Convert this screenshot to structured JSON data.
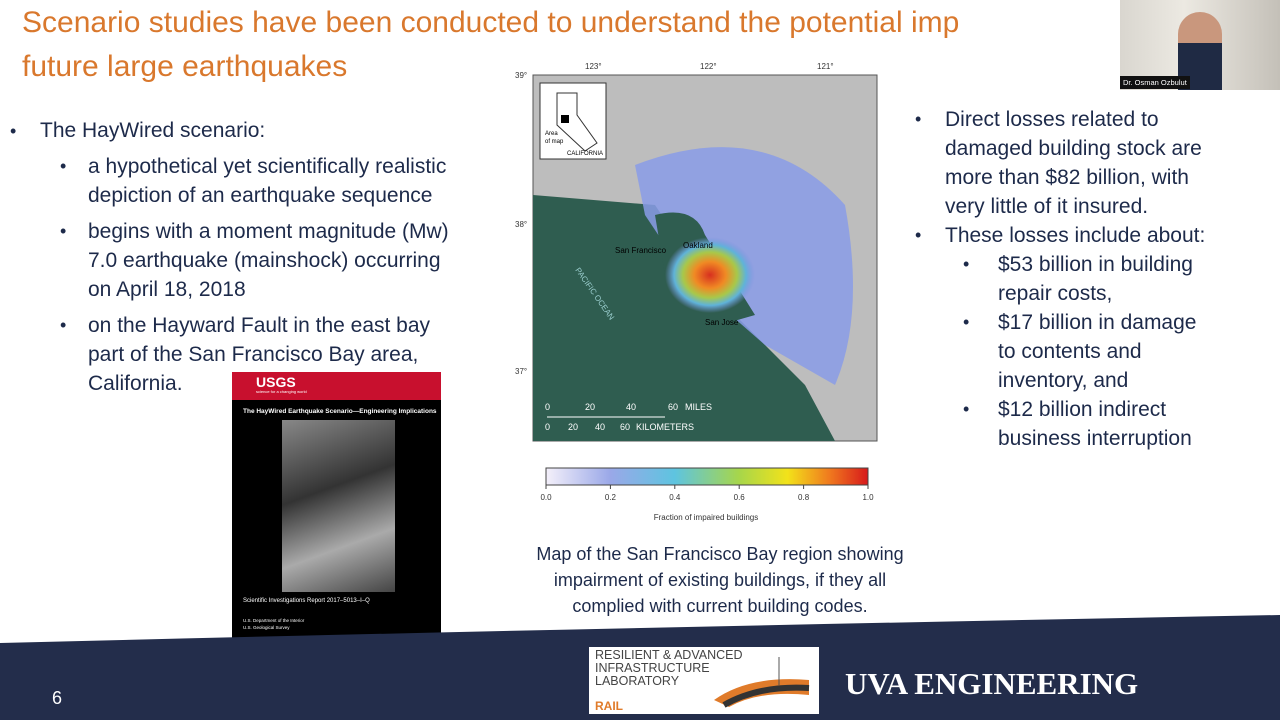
{
  "slide": {
    "title_lines": [
      "Scenario studies have been conducted to understand the potential imp",
      "future large earthquakes"
    ],
    "left": {
      "heading": "The HayWired scenario:",
      "items": [
        [
          "a hypothetical yet scientifically realistic",
          "depiction of an earthquake sequence"
        ],
        [
          "begins with a moment magnitude (Mw)",
          "7.0 earthquake (mainshock) occurring",
          "on April 18, 2018"
        ],
        [
          "on the Hayward Fault in the east bay",
          "part of the San Francisco Bay area,",
          "California."
        ]
      ]
    },
    "right": {
      "items": [
        [
          "Direct losses related to",
          "damaged building stock are",
          "more than $82 billion, with",
          "very little of it insured."
        ],
        [
          "These losses include about:"
        ]
      ],
      "subitems": [
        [
          "$53 billion in building",
          "repair costs,"
        ],
        [
          "$17 billion in damage",
          "to contents and",
          "inventory, and"
        ],
        [
          "$12 billion indirect",
          "business interruption"
        ]
      ]
    },
    "map": {
      "lon_labels": [
        "123°",
        "122°",
        "121°"
      ],
      "lat_labels": [
        "39°",
        "38°",
        "37°"
      ],
      "inset": {
        "area": [
          "Area",
          "of map"
        ],
        "state": "CALIFORNIA"
      },
      "places": {
        "sf": "San Francisco",
        "oak": "Oakland",
        "sj": "San Jose",
        "ocean": "PACIFIC OCEAN"
      },
      "scale_miles": [
        "0",
        "20",
        "40",
        "60",
        "MILES"
      ],
      "scale_km": [
        "0",
        "20",
        "40",
        "60",
        "KILOMETERS"
      ]
    },
    "colorbar": {
      "ticks": [
        "0.0",
        "0.2",
        "0.4",
        "0.6",
        "0.8",
        "1.0"
      ],
      "label": "Fraction of impaired buildings"
    },
    "caption": [
      "Map of the San Francisco Bay region showing",
      "impairment of existing buildings, if they all",
      "complied with current building codes."
    ],
    "report_cover": {
      "publisher": "USGS",
      "tagline": "science for a changing world",
      "title": "The HayWired Earthquake Scenario—Engineering Implications",
      "report": "Scientific Investigations Report 2017–5013–I–Q",
      "agency": [
        "U.S. Department of the Interior",
        "U.S. Geological Survey"
      ]
    },
    "footer": {
      "page": "6",
      "lab": [
        "RESILIENT & ADVANCED",
        "INFRASTRUCTURE",
        "LABORATORY"
      ],
      "lab_abbr": "RAIL",
      "school": "UVA ENGINEERING"
    },
    "video": {
      "name": "Dr. Osman Ozbulut"
    }
  }
}
